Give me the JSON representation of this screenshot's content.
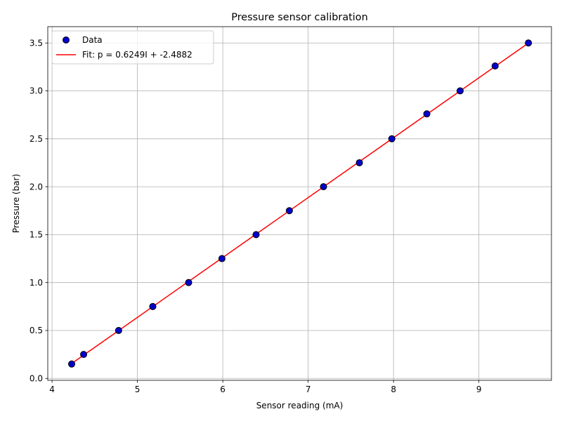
{
  "chart_data": {
    "type": "scatter",
    "title": "Pressure sensor calibration",
    "xlabel": "Sensor reading (mA)",
    "ylabel": "Pressure (bar)",
    "xlim": [
      3.95,
      9.85
    ],
    "ylim": [
      -0.02,
      3.67
    ],
    "xticks": [
      4,
      5,
      6,
      7,
      8,
      9
    ],
    "xtick_labels": [
      "4",
      "5",
      "6",
      "7",
      "8",
      "9"
    ],
    "yticks": [
      0.0,
      0.5,
      1.0,
      1.5,
      2.0,
      2.5,
      3.0,
      3.5
    ],
    "ytick_labels": [
      "0.0",
      "0.5",
      "1.0",
      "1.5",
      "2.0",
      "2.5",
      "3.0",
      "3.5"
    ],
    "grid": true,
    "legend_position": "top-left",
    "series": [
      {
        "name": "Data",
        "kind": "scatter",
        "color": "#0000cc",
        "edge_color": "#000000",
        "x": [
          4.23,
          4.37,
          4.78,
          5.18,
          5.6,
          5.99,
          6.39,
          6.78,
          7.18,
          7.6,
          7.98,
          8.39,
          8.78,
          9.19,
          9.58
        ],
        "y": [
          0.15,
          0.25,
          0.5,
          0.75,
          1.0,
          1.25,
          1.5,
          1.75,
          2.0,
          2.25,
          2.5,
          2.76,
          3.0,
          3.26,
          3.5
        ]
      },
      {
        "name": "Fit: p = 0.6249I + -2.4882",
        "kind": "line",
        "color": "#ff0000",
        "x": [
          4.23,
          9.58
        ],
        "y": [
          0.155,
          3.499
        ]
      }
    ]
  }
}
